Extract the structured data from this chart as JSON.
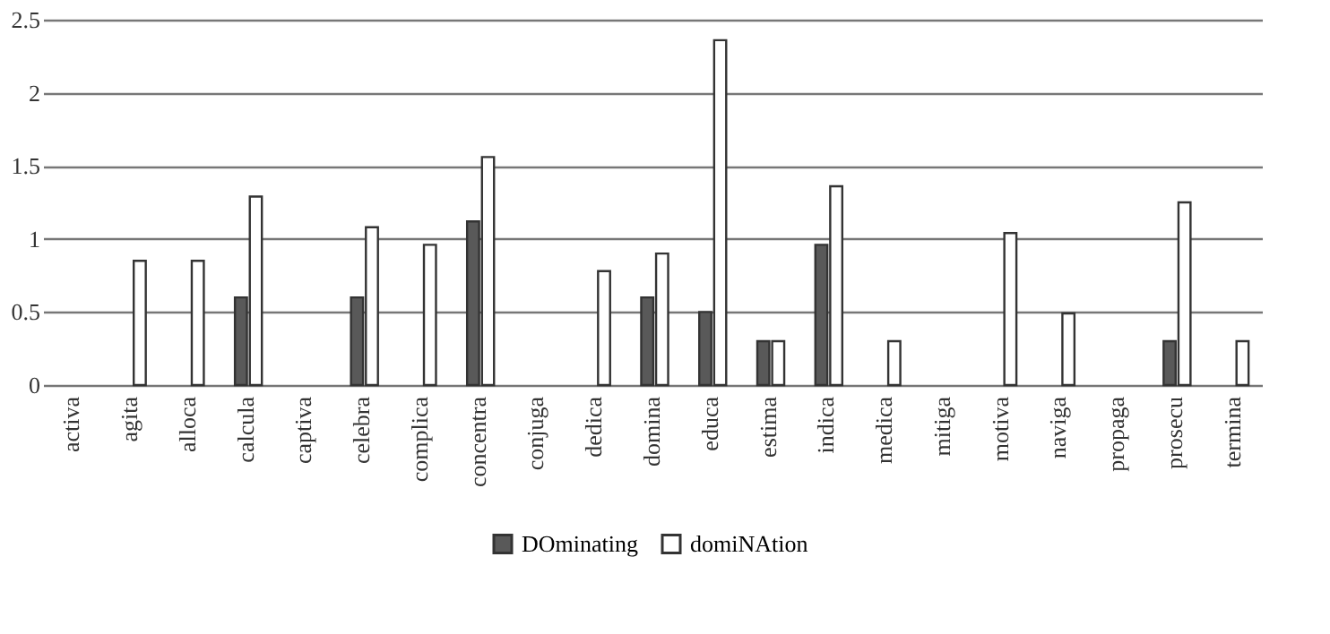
{
  "chart_data": {
    "type": "bar",
    "categories": [
      "activa",
      "agita",
      "alloca",
      "calcula",
      "captiva",
      "celebra",
      "complica",
      "concentra",
      "conjuga",
      "dedica",
      "domina",
      "educa",
      "estima",
      "indica",
      "medica",
      "mitiga",
      "motiva",
      "naviga",
      "propaga",
      "prosecu",
      "termina"
    ],
    "series": [
      {
        "name": "DOminating",
        "color": "#595959",
        "values": [
          0,
          0,
          0,
          0.6,
          0,
          0.6,
          0,
          1.12,
          0,
          0,
          0.6,
          0.5,
          0.3,
          0.96,
          0,
          0,
          0,
          0,
          0,
          0.3,
          0
        ]
      },
      {
        "name": "domiNAtion",
        "color": "#ffffff",
        "values": [
          0,
          0.85,
          0.85,
          1.29,
          0,
          1.08,
          0.96,
          1.56,
          0,
          0.78,
          0.9,
          2.36,
          0.3,
          1.36,
          0.3,
          0,
          1.04,
          0.49,
          0,
          1.25,
          0.3
        ]
      }
    ],
    "ylim": [
      0,
      2.5
    ],
    "yticks": [
      0,
      0.5,
      1,
      1.5,
      2,
      2.5
    ],
    "grid": "y",
    "legend": "bottom"
  }
}
